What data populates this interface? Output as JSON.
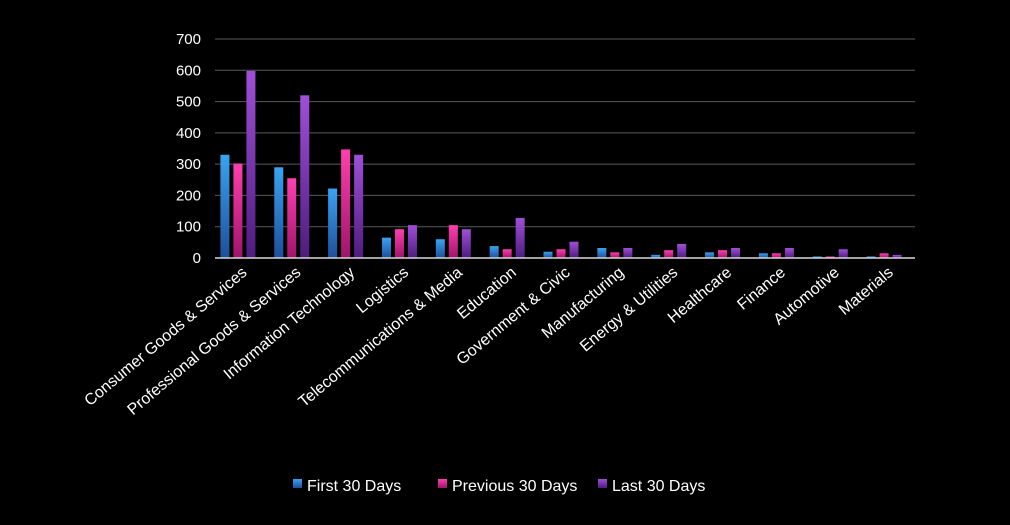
{
  "chart_data": {
    "type": "bar",
    "title": "",
    "xlabel": "",
    "ylabel": "",
    "ylim": [
      0,
      700
    ],
    "yticks": [
      0,
      100,
      200,
      300,
      400,
      500,
      600,
      700
    ],
    "grid": true,
    "legend_position": "bottom",
    "categories": [
      "Consumer Goods & Services",
      "Professional Goods & Services",
      "Information Technology",
      "Logistics",
      "Telecommunications & Media",
      "Education",
      "Government & Civic",
      "Manufacturing",
      "Energy & Utilities",
      "Healthcare",
      "Finance",
      "Automotive",
      "Materials"
    ],
    "series": [
      {
        "name": "First 30 Days",
        "color_top": "#3aa3f0",
        "color_bottom": "#1d4f9c",
        "values": [
          330,
          290,
          222,
          65,
          60,
          38,
          20,
          32,
          10,
          18,
          15,
          5,
          5
        ]
      },
      {
        "name": "Previous 30 Days",
        "color_top": "#ff3fb0",
        "color_bottom": "#a0146a",
        "values": [
          302,
          255,
          347,
          92,
          105,
          28,
          28,
          18,
          25,
          25,
          15,
          5,
          15
        ]
      },
      {
        "name": "Last 30 Days",
        "color_top": "#a04fd8",
        "color_bottom": "#4e1c80",
        "values": [
          598,
          520,
          330,
          105,
          92,
          128,
          52,
          32,
          45,
          32,
          32,
          28,
          10
        ]
      }
    ]
  }
}
